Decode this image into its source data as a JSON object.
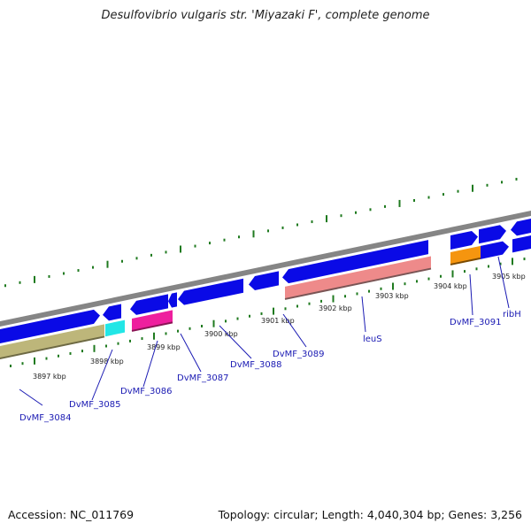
{
  "header": {
    "title": "Desulfovibrio vulgaris str. 'Miyazaki F', complete genome"
  },
  "footer": {
    "accession": "Accession: NC_011769",
    "stats": "Topology: circular; Length: 4,040,304 bp; Genes: 3,256"
  },
  "scale": {
    "ticks": [
      "3897 kbp",
      "3898 kbp",
      "3899 kbp",
      "3900 kbp",
      "3901 kbp",
      "3902 kbp",
      "3903 kbp",
      "3904 kbp",
      "3905 kbp"
    ]
  },
  "genes": [
    {
      "name": "DvMF_3084"
    },
    {
      "name": "DvMF_3085"
    },
    {
      "name": "DvMF_3086"
    },
    {
      "name": "DvMF_3087"
    },
    {
      "name": "DvMF_3088"
    },
    {
      "name": "DvMF_3089"
    },
    {
      "name": "leuS"
    },
    {
      "name": "DvMF_3091"
    },
    {
      "name": "ribH"
    }
  ],
  "colors": {
    "backbone": "#858585",
    "cds": "#0a0ae6",
    "tick": "#1f7a1f",
    "label": "#1a1ab3",
    "rna_khaki": "#bdb67a",
    "rna_cyan": "#22e6e6",
    "rna_magenta": "#ee1f9e",
    "rna_salmon": "#ee8a8a",
    "rna_orange": "#f5950f"
  }
}
